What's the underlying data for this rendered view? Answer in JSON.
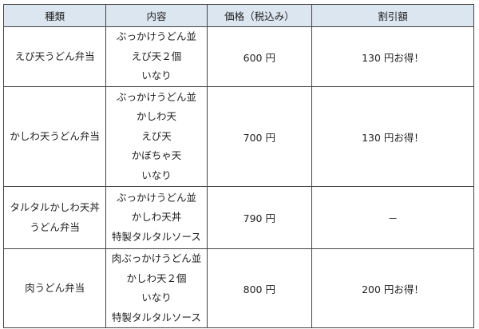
{
  "headers": [
    "種類",
    "内容",
    "価格（税込み）",
    "割引額"
  ],
  "rows": [
    {
      "name": [
        "えび天うどん弁当"
      ],
      "contents": [
        "ぶっかけうどん並",
        "えび天２個",
        "いなり"
      ],
      "price": "600 円",
      "discount": "130 円お得！"
    },
    {
      "name": [
        "かしわ天うどん弁当"
      ],
      "contents": [
        "ぶっかけうどん並",
        "かしわ天",
        "えび天",
        "かぼちゃ天",
        "いなり"
      ],
      "price": "700 円",
      "discount": "130 円お得！"
    },
    {
      "name": [
        "タルタルかしわ天丼",
        "うどん弁当"
      ],
      "contents": [
        "ぶっかけうどん並",
        "かしわ天丼",
        "特製タルタルソース"
      ],
      "price": "790 円",
      "discount": "－"
    },
    {
      "name": [
        "肉うどん弁当"
      ],
      "contents": [
        "肉ぶっかけうどん並",
        "かしわ天２個",
        "いなり",
        "特製タルタルソース"
      ],
      "price": "800 円",
      "discount": "200 円お得！"
    }
  ]
}
